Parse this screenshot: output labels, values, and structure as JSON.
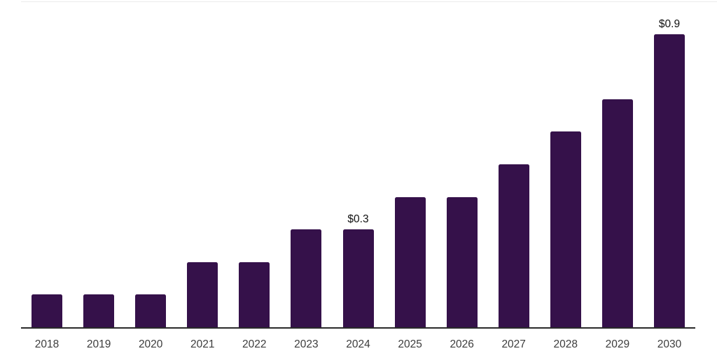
{
  "chart_data": {
    "type": "bar",
    "title": "",
    "xlabel": "",
    "ylabel": "",
    "categories": [
      "2018",
      "2019",
      "2020",
      "2021",
      "2022",
      "2023",
      "2024",
      "2025",
      "2026",
      "2027",
      "2028",
      "2029",
      "2030"
    ],
    "values": [
      0.1,
      0.1,
      0.1,
      0.2,
      0.2,
      0.3,
      0.3,
      0.4,
      0.4,
      0.5,
      0.6,
      0.7,
      0.9
    ],
    "value_labels": [
      "",
      "",
      "",
      "",
      "",
      "",
      "$0.3",
      "",
      "",
      "",
      "",
      "",
      "$0.9"
    ],
    "ylim": [
      0,
      0.97
    ],
    "grid": false,
    "legend": false,
    "colors": {
      "bar": "#35114A",
      "axis": "#2a2a2a",
      "tick_label": "#3c3c3c",
      "value_label": "#111111",
      "top_border": "#ebebeb",
      "background": "#ffffff"
    }
  }
}
